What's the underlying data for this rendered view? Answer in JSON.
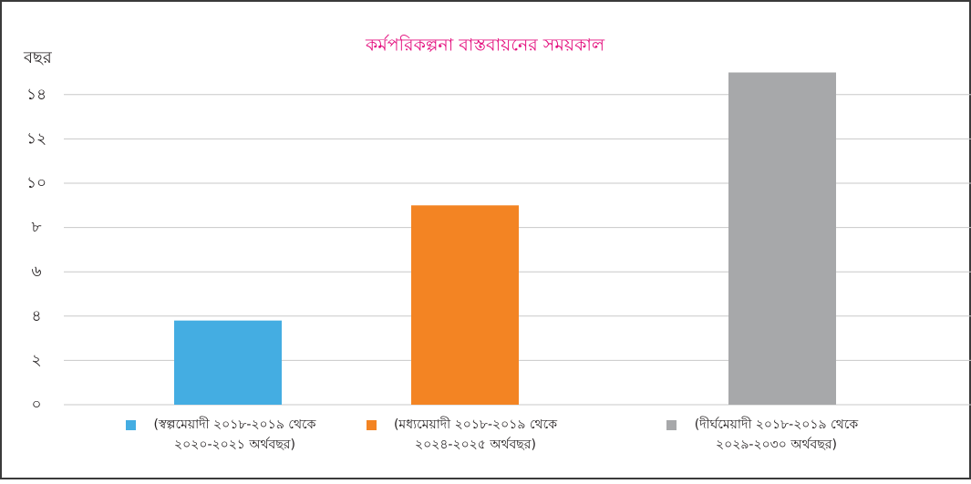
{
  "chart_data": {
    "type": "bar",
    "title": "কর্মপরিকল্পনা বাস্তবায়নের সময়কাল",
    "y_label": "বছর",
    "categories": [
      "(স্বল্পমেয়াদী ২০১৮-২০১৯ থেকে ২০২০-২০২১ অর্থবছর)",
      "(মধ্যমেয়াদী ২০১৮-২০১৯ থেকে ২০২৪-২০২৫ অর্থবছর)",
      "(দীর্ঘমেয়াদী ২০১৮-২০১৯ থেকে ২০২৯-২০৩০ অর্থবছর)"
    ],
    "values": [
      3.8,
      9,
      15
    ],
    "colors": [
      "#44ade2",
      "#f38423",
      "#a7a8aa"
    ],
    "ylim": [
      0,
      15
    ],
    "yticks": [
      {
        "value": 0,
        "label": "০"
      },
      {
        "value": 2,
        "label": "২"
      },
      {
        "value": 4,
        "label": "৪"
      },
      {
        "value": 6,
        "label": "৬"
      },
      {
        "value": 8,
        "label": "৮"
      },
      {
        "value": 10,
        "label": "১০"
      },
      {
        "value": 12,
        "label": "১২"
      },
      {
        "value": 14,
        "label": "১৪"
      }
    ],
    "grid": true
  }
}
